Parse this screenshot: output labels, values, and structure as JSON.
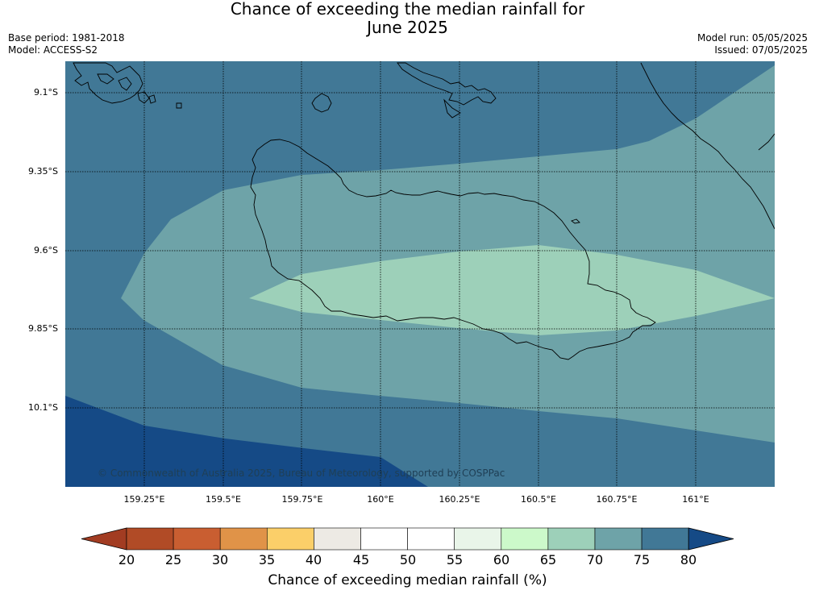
{
  "title": {
    "line1": "Chance of exceeding the median rainfall for",
    "line2": "June 2025"
  },
  "meta": {
    "base_period": "Base period: 1981-2018",
    "model": "Model: ACCESS-S2",
    "model_run": "Model run: 05/05/2025",
    "issued": "Issued: 07/05/2025"
  },
  "map": {
    "lat_ticks": [
      "9.1°S",
      "9.35°S",
      "9.6°S",
      "9.85°S",
      "10.1°S"
    ],
    "lon_ticks": [
      "159.25°E",
      "159.5°E",
      "159.75°E",
      "160°E",
      "160.25°E",
      "160.5°E",
      "160.75°E",
      "161°E"
    ],
    "copyright": "© Commonwealth of Australia 2025, Bureau of Meteorology, supported by COSPPac",
    "fill_colors": {
      "band_75_80": "#417896",
      "band_70_75": "#6ea3a8",
      "band_65_70": "#9dd0b9",
      "band_above_80": "#154a86"
    }
  },
  "colorbar": {
    "label": "Chance of exceeding median rainfall (%)",
    "ticks": [
      "20",
      "25",
      "30",
      "35",
      "40",
      "45",
      "50",
      "55",
      "60",
      "65",
      "70",
      "75",
      "80"
    ],
    "colors": [
      "#a23c22",
      "#b14b26",
      "#c95e31",
      "#e09348",
      "#fbcf69",
      "#edeae4",
      "#ffffff",
      "#ffffff",
      "#e9f5e9",
      "#ccf9ca",
      "#9dd0b9",
      "#6ea3a8",
      "#417896",
      "#154a86"
    ]
  }
}
